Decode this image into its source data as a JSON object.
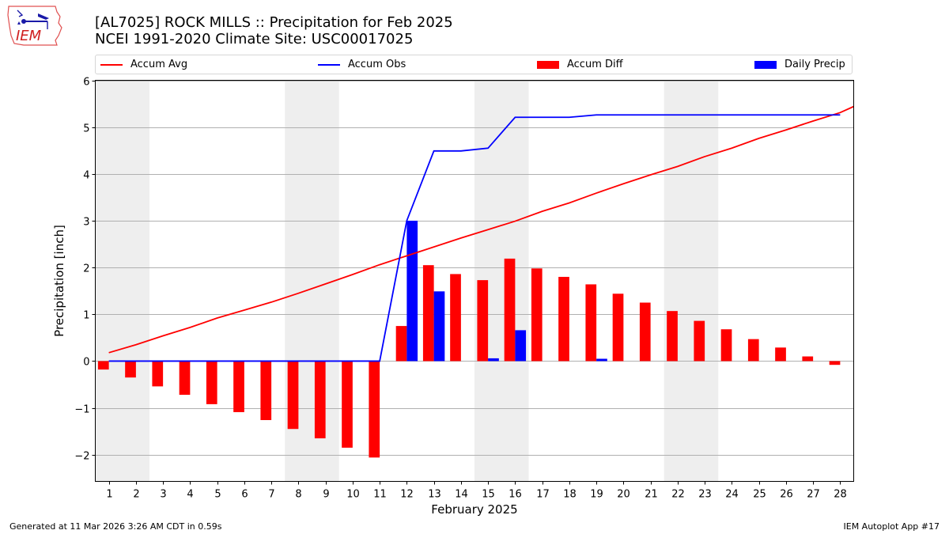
{
  "header": {
    "logo_text": "IEM",
    "title_line1": "[AL7025] ROCK MILLS :: Precipitation for Feb 2025",
    "title_line2": "NCEI 1991-2020 Climate Site: USC00017025"
  },
  "footer": {
    "generated": "Generated at 11 Mar 2026 3:26 AM CDT in 0.59s",
    "app": "IEM Autoplot App #17"
  },
  "colors": {
    "accum_avg": "#ff0000",
    "accum_obs": "#0000ff",
    "accum_diff": "#ff0000",
    "daily_precip": "#0000ff",
    "weekend_shade": "#eeeeee",
    "grid": "#b0b0b0"
  },
  "chart_data": {
    "type": "bar",
    "title": "[AL7025] ROCK MILLS :: Precipitation for Feb 2025",
    "subtitle": "NCEI 1991-2020 Climate Site: USC00017025",
    "xlabel": "February 2025",
    "ylabel": "Precipitation [inch]",
    "xlim": [
      0.5,
      28.5
    ],
    "ylim": [
      -2.57,
      6.0
    ],
    "yticks": [
      -2,
      -1,
      0,
      1,
      2,
      3,
      4,
      5,
      6
    ],
    "ytick_labels": [
      "−2",
      "−1",
      "0",
      "1",
      "2",
      "3",
      "4",
      "5",
      "6"
    ],
    "grid": "horizontal",
    "legend_position": "top",
    "legend": [
      "Accum Avg",
      "Accum Obs",
      "Accum Diff",
      "Daily Precip"
    ],
    "x": [
      1,
      2,
      3,
      4,
      5,
      6,
      7,
      8,
      9,
      10,
      11,
      12,
      13,
      14,
      15,
      16,
      17,
      18,
      19,
      20,
      21,
      22,
      23,
      24,
      25,
      26,
      27,
      28
    ],
    "x_tick_labels": [
      "1",
      "2",
      "3",
      "4",
      "5",
      "6",
      "7",
      "8",
      "9",
      "10",
      "11",
      "12",
      "13",
      "14",
      "15",
      "16",
      "17",
      "18",
      "19",
      "20",
      "21",
      "22",
      "23",
      "24",
      "25",
      "26",
      "27",
      "28"
    ],
    "weekend_spans": [
      [
        0.5,
        2.5
      ],
      [
        7.5,
        9.5
      ],
      [
        14.5,
        16.5
      ],
      [
        21.5,
        23.5
      ]
    ],
    "series": [
      {
        "name": "Accum Avg",
        "kind": "line",
        "values": [
          0.18,
          0.35,
          0.54,
          0.72,
          0.92,
          1.09,
          1.26,
          1.45,
          1.65,
          1.85,
          2.06,
          2.25,
          2.44,
          2.63,
          2.81,
          2.99,
          3.2,
          3.38,
          3.59,
          3.79,
          3.98,
          4.16,
          4.37,
          4.55,
          4.76,
          4.94,
          5.13,
          5.31
        ],
        "extend_to": [
          28.5,
          5.44
        ]
      },
      {
        "name": "Accum Obs",
        "kind": "line",
        "values": [
          0,
          0,
          0,
          0,
          0,
          0,
          0,
          0,
          0,
          0,
          0,
          3.0,
          4.49,
          4.49,
          4.55,
          5.21,
          5.21,
          5.21,
          5.26,
          5.26,
          5.26,
          5.26,
          5.26,
          5.26,
          5.26,
          5.26,
          5.26,
          5.26
        ]
      },
      {
        "name": "Accum Diff",
        "kind": "bar",
        "values": [
          -0.18,
          -0.35,
          -0.54,
          -0.72,
          -0.92,
          -1.09,
          -1.26,
          -1.45,
          -1.65,
          -1.85,
          -2.06,
          0.75,
          2.05,
          1.86,
          1.73,
          2.19,
          1.98,
          1.8,
          1.64,
          1.44,
          1.25,
          1.07,
          0.86,
          0.68,
          0.47,
          0.29,
          0.1,
          -0.08
        ]
      },
      {
        "name": "Daily Precip",
        "kind": "bar",
        "values": [
          0,
          0,
          0,
          0,
          0,
          0,
          0,
          0,
          0,
          0,
          0,
          3.0,
          1.49,
          0,
          0.06,
          0.66,
          0,
          0,
          0.05,
          0,
          0,
          0,
          0,
          0,
          0,
          0,
          0,
          0
        ]
      }
    ]
  }
}
